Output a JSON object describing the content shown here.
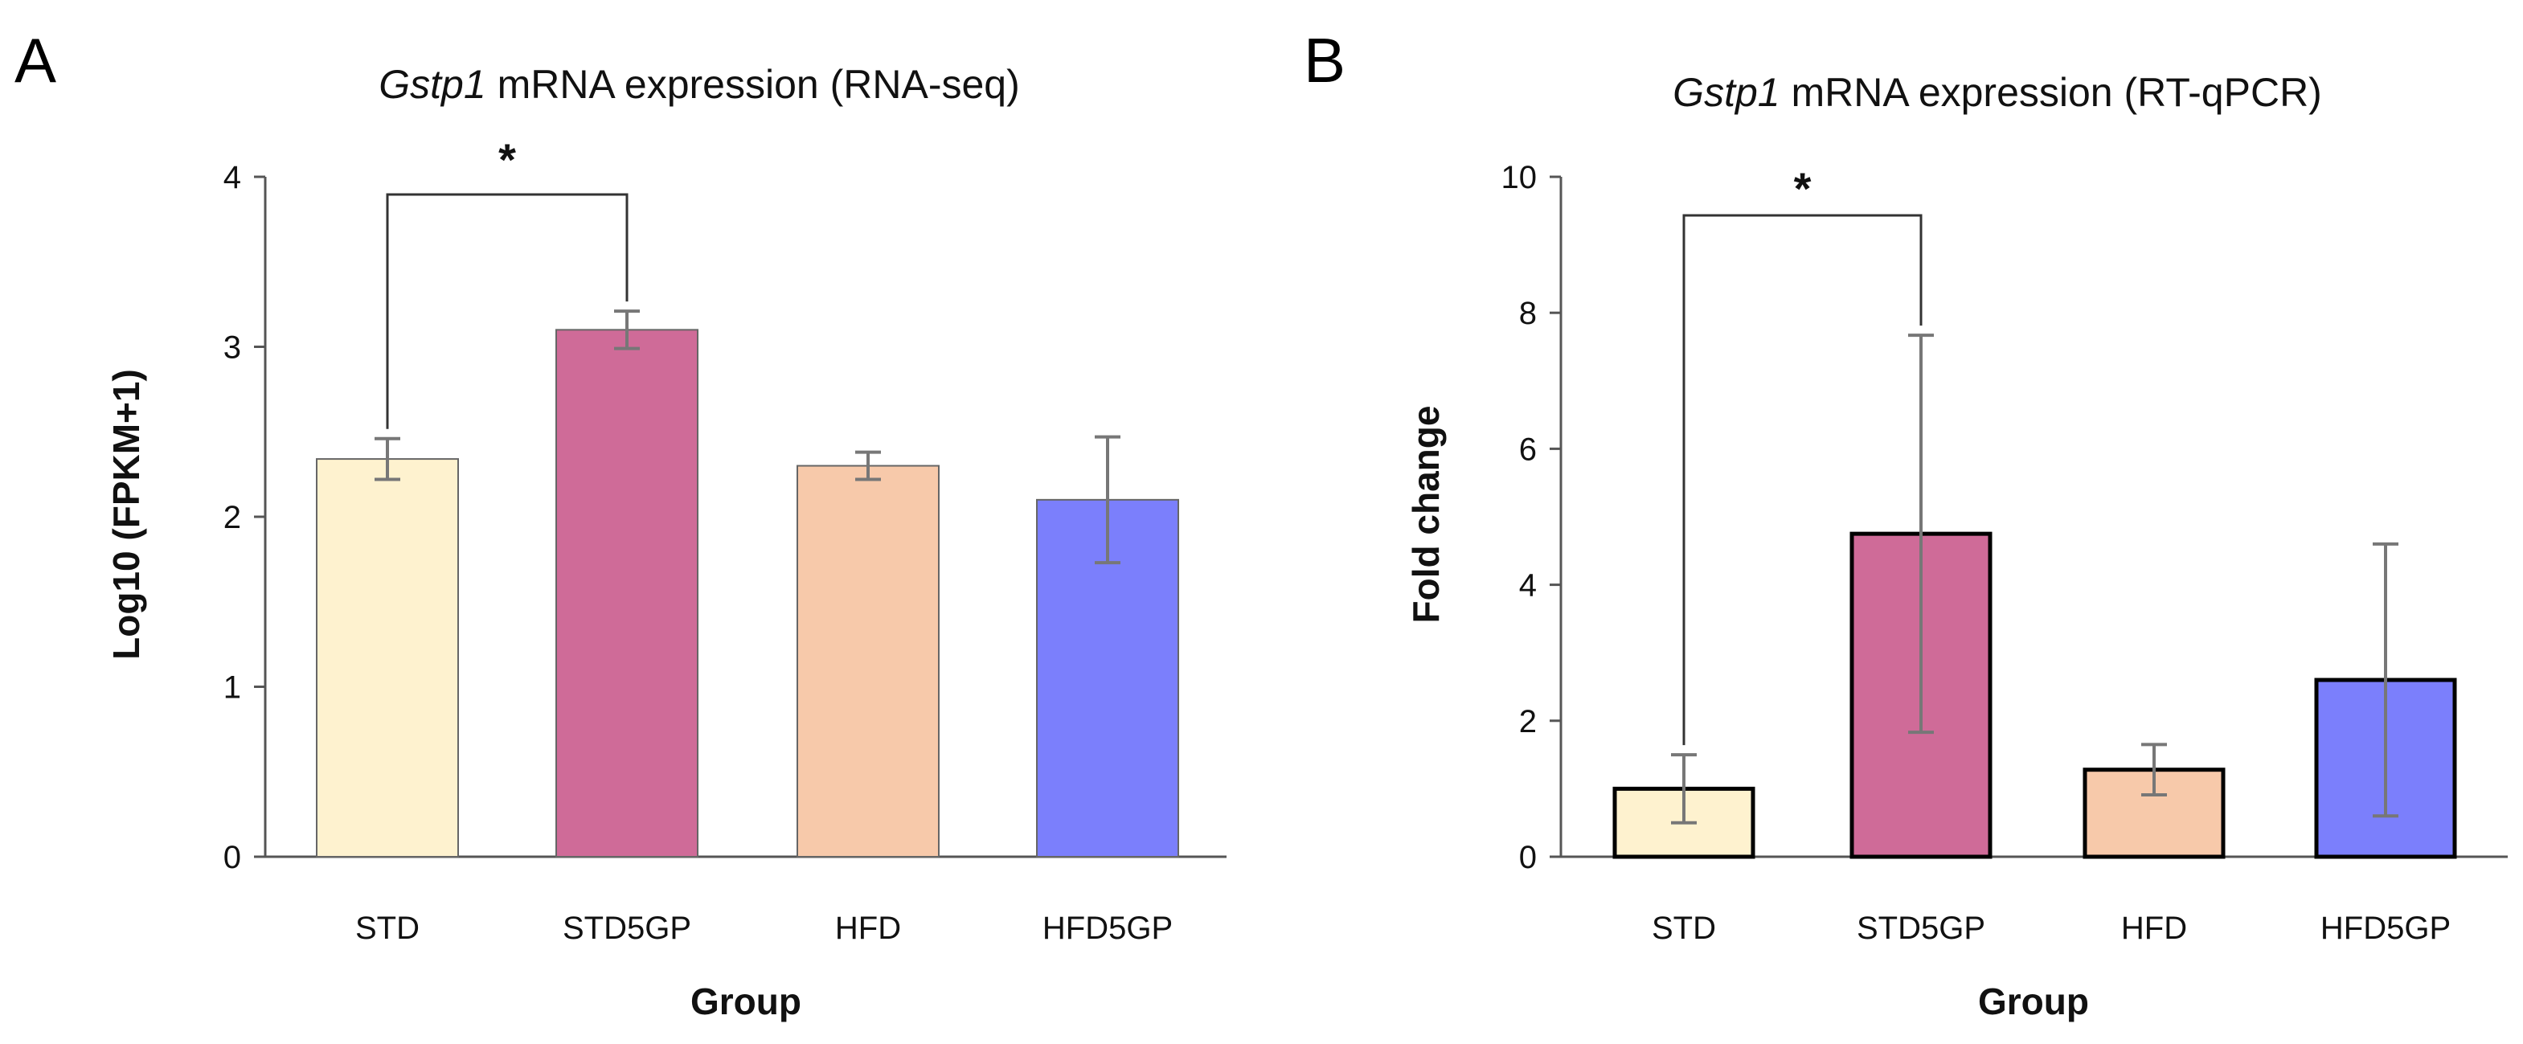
{
  "chart_data": [
    {
      "panel": "A",
      "type": "bar",
      "title_gene": "Gstp1",
      "title_rest": " mRNA expression (RNA-seq)",
      "xlabel": "Group",
      "ylabel": "Log10 (FPKM+1)",
      "ylim": [
        0,
        4
      ],
      "yticks": [
        0,
        1,
        2,
        3,
        4
      ],
      "categories": [
        "STD",
        "STD5GP",
        "HFD",
        "HFD5GP"
      ],
      "values": [
        2.34,
        3.1,
        2.3,
        2.1
      ],
      "errors": [
        0.12,
        0.11,
        0.08,
        0.37
      ],
      "colors": [
        "#fef2cf",
        "#cf6b98",
        "#f7c9aa",
        "#7b7ffc"
      ],
      "bar_border": "#666666",
      "significance": {
        "from": 0,
        "to": 1,
        "label": "*"
      }
    },
    {
      "panel": "B",
      "type": "bar",
      "title_gene": "Gstp1",
      "title_rest": " mRNA expression (RT-qPCR)",
      "xlabel": "Group",
      "ylabel": "Fold change",
      "ylim": [
        0,
        10
      ],
      "yticks": [
        0,
        2,
        4,
        6,
        8,
        10
      ],
      "categories": [
        "STD",
        "STD5GP",
        "HFD",
        "HFD5GP"
      ],
      "values": [
        1.0,
        4.75,
        1.28,
        2.6
      ],
      "errors": [
        0.5,
        2.92,
        0.37,
        2.0
      ],
      "colors": [
        "#fef2cf",
        "#cf6b98",
        "#f7c9aa",
        "#7b7ffc"
      ],
      "bar_border": "#000000",
      "significance": {
        "from": 0,
        "to": 1,
        "label": "*"
      }
    }
  ]
}
